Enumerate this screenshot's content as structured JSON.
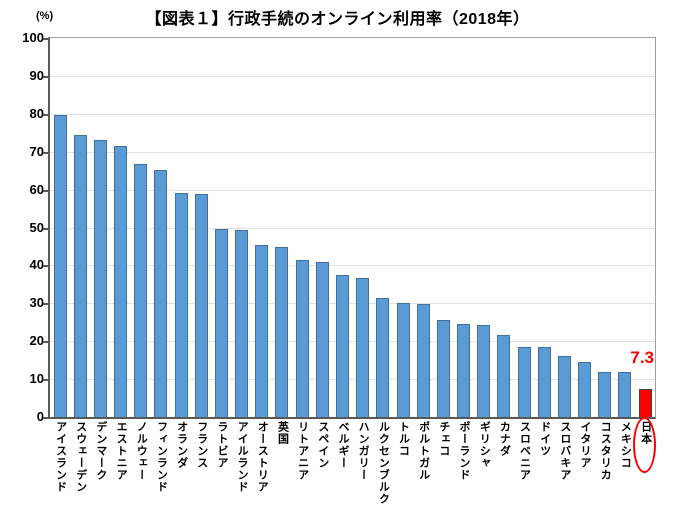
{
  "chart_data": {
    "type": "bar",
    "title": "【図表１】行政手続のオンライン利用率（2018年）",
    "unit_label": "(%)",
    "xlabel": "",
    "ylabel": "",
    "ylim": [
      0,
      100
    ],
    "yticks": [
      0,
      10,
      20,
      30,
      40,
      50,
      60,
      70,
      80,
      90,
      100
    ],
    "grid": "horizontal",
    "legend": "none",
    "categories": [
      "アイスランド",
      "スウェーデン",
      "デンマーク",
      "エストニア",
      "ノルウェー",
      "フィンランド",
      "オランダ",
      "フランス",
      "ラトビア",
      "アイルランド",
      "オーストリア",
      "英国",
      "リトアニア",
      "スペイン",
      "ベルギー",
      "ハンガリー",
      "ルクセンブルク",
      "トルコ",
      "ポルトガル",
      "チェコ",
      "ポーランド",
      "ギリシャ",
      "カナダ",
      "スロベニア",
      "ドイツ",
      "スロバキア",
      "イタリア",
      "コスタリカ",
      "メキシコ",
      "日本"
    ],
    "values": [
      79.8,
      74.5,
      73.0,
      71.5,
      66.7,
      65.2,
      59.0,
      58.8,
      49.6,
      49.3,
      45.3,
      44.8,
      41.5,
      41.0,
      37.4,
      36.6,
      31.4,
      30.0,
      29.8,
      25.7,
      24.6,
      24.3,
      21.7,
      18.5,
      18.4,
      16.1,
      14.6,
      12.0,
      11.9,
      7.3
    ],
    "highlight": {
      "category": "日本",
      "index": 29,
      "value_label": "7.3",
      "marker": "red-ellipse-around-category-label"
    },
    "colors": {
      "bar_fill": "#5B9BD5",
      "bar_border": "#41719C",
      "highlight_fill": "#FF0000",
      "highlight_border": "#404040",
      "gridline": "#E2E2E2",
      "axis": "#595959",
      "tick": "#595959",
      "annotation": "#FF0000",
      "ellipse": "#FF0000"
    }
  }
}
